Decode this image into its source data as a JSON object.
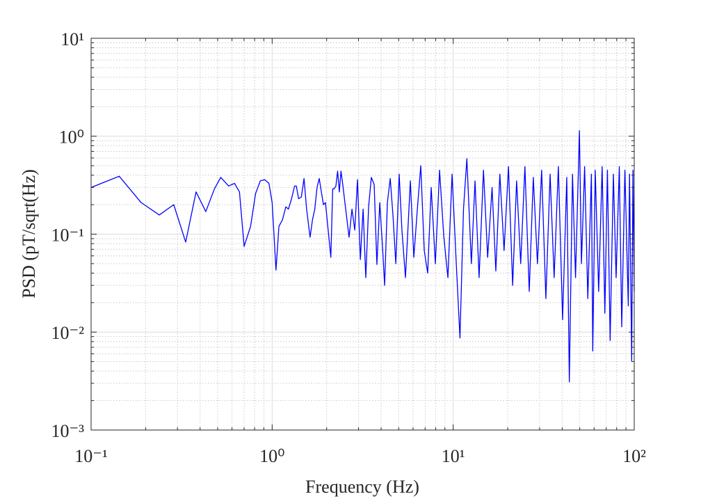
{
  "chart_data": {
    "type": "line",
    "log_x": true,
    "log_y": true,
    "grid": true,
    "minor_grid": true,
    "color": "#0000ff",
    "xlabel": "Frequency (Hz)",
    "ylabel": "PSD (pT/sqrt(Hz)",
    "xlim": [
      0.1,
      100
    ],
    "ylim": [
      0.001,
      10
    ],
    "xticks": [
      {
        "value": 0.1,
        "label": "10⁻¹"
      },
      {
        "value": 1,
        "label": "10⁰"
      },
      {
        "value": 10,
        "label": "10¹"
      },
      {
        "value": 100,
        "label": "10²"
      }
    ],
    "yticks": [
      {
        "value": 0.001,
        "label": "10⁻³"
      },
      {
        "value": 0.01,
        "label": "10⁻²"
      },
      {
        "value": 0.1,
        "label": "10⁻¹"
      },
      {
        "value": 1,
        "label": "10⁰"
      },
      {
        "value": 10,
        "label": "10¹"
      }
    ],
    "x": [
      0.1,
      0.143,
      0.189,
      0.238,
      0.286,
      0.333,
      0.38,
      0.43,
      0.48,
      0.52,
      0.575,
      0.62,
      0.66,
      0.7,
      0.76,
      0.81,
      0.86,
      0.91,
      0.96,
      1.0,
      1.05,
      1.09,
      1.14,
      1.19,
      1.23,
      1.28,
      1.33,
      1.36,
      1.4,
      1.45,
      1.5,
      1.55,
      1.62,
      1.67,
      1.72,
      1.77,
      1.82,
      1.87,
      1.92,
      1.97,
      2.11,
      2.16,
      2.2,
      2.25,
      2.3,
      2.35,
      2.4,
      2.45,
      2.66,
      2.76,
      2.86,
      2.96,
      3.07,
      3.18,
      3.29,
      3.41,
      3.53,
      3.66,
      3.79,
      3.93,
      4.07,
      4.18,
      4.33,
      4.49,
      4.65,
      4.82,
      5.03,
      5.21,
      5.45,
      5.8,
      6.06,
      6.34,
      6.62,
      6.92,
      7.23,
      7.56,
      7.97,
      8.41,
      8.87,
      9.35,
      9.86,
      10.4,
      10.9,
      11.4,
      11.9,
      12.6,
      13.2,
      13.9,
      14.7,
      15.5,
      16.4,
      17.2,
      18.1,
      19.1,
      20.2,
      21.3,
      22.4,
      23.6,
      24.9,
      26.3,
      27.7,
      29.2,
      30.8,
      32.5,
      34.3,
      36.1,
      38.1,
      40.2,
      42.4,
      43.8,
      45.6,
      47.4,
      49.8,
      51.1,
      53.2,
      55.4,
      58.0,
      59.0,
      60.9,
      63.6,
      66.5,
      68.8,
      71.1,
      73.6,
      76.7,
      79.4,
      82.7,
      85.3,
      88.8,
      92.7,
      94.2,
      96.8,
      98.4,
      100
    ],
    "values": [
      0.3,
      0.39,
      0.21,
      0.157,
      0.2,
      0.083,
      0.27,
      0.17,
      0.29,
      0.38,
      0.31,
      0.33,
      0.27,
      0.075,
      0.12,
      0.26,
      0.35,
      0.36,
      0.33,
      0.21,
      0.043,
      0.12,
      0.14,
      0.19,
      0.18,
      0.23,
      0.31,
      0.31,
      0.23,
      0.24,
      0.37,
      0.18,
      0.093,
      0.14,
      0.18,
      0.3,
      0.37,
      0.27,
      0.2,
      0.21,
      0.058,
      0.29,
      0.29,
      0.31,
      0.44,
      0.27,
      0.44,
      0.33,
      0.093,
      0.18,
      0.11,
      0.36,
      0.055,
      0.18,
      0.036,
      0.19,
      0.38,
      0.32,
      0.049,
      0.21,
      0.074,
      0.03,
      0.21,
      0.37,
      0.155,
      0.05,
      0.41,
      0.11,
      0.036,
      0.35,
      0.058,
      0.18,
      0.5,
      0.068,
      0.04,
      0.3,
      0.05,
      0.45,
      0.095,
      0.036,
      0.41,
      0.05,
      0.0087,
      0.18,
      0.59,
      0.05,
      0.35,
      0.036,
      0.45,
      0.058,
      0.3,
      0.042,
      0.41,
      0.068,
      0.49,
      0.03,
      0.35,
      0.05,
      0.49,
      0.026,
      0.38,
      0.05,
      0.45,
      0.022,
      0.41,
      0.036,
      0.49,
      0.0134,
      0.38,
      0.0031,
      0.41,
      0.036,
      1.14,
      0.05,
      0.49,
      0.022,
      0.41,
      0.0064,
      0.45,
      0.026,
      0.49,
      0.0156,
      0.45,
      0.0082,
      0.41,
      0.036,
      0.49,
      0.0113,
      0.45,
      0.0185,
      0.41,
      0.0051,
      0.45,
      0.026
    ]
  }
}
